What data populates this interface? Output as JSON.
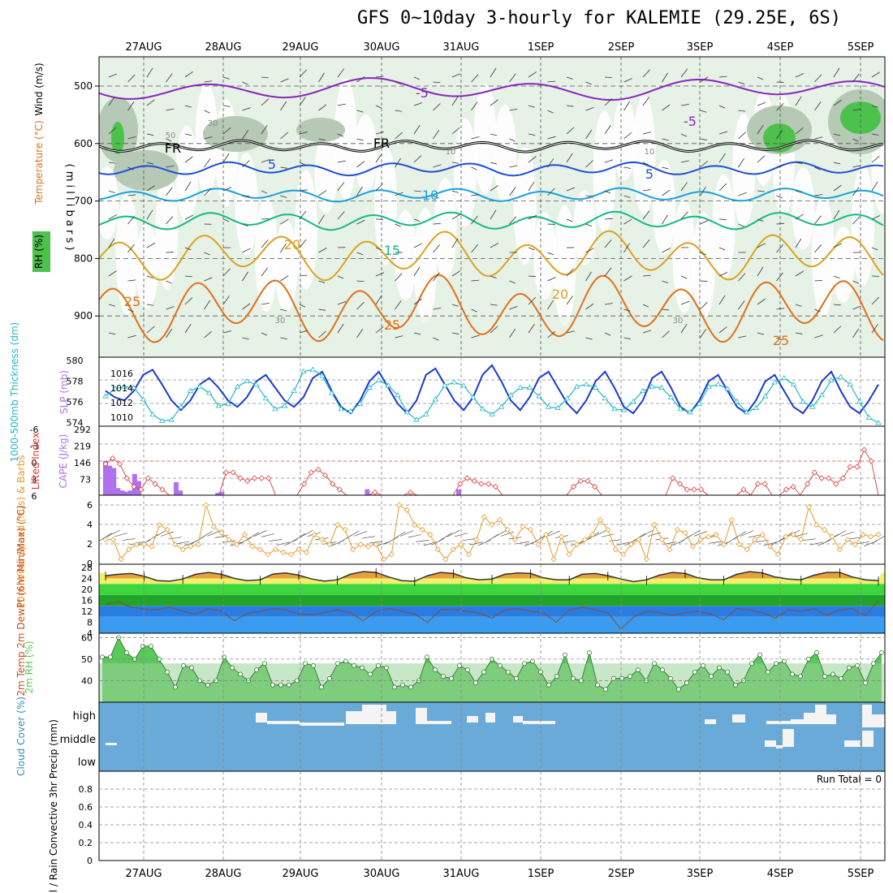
{
  "title": "GFS 0~10day 3-hourly for KALEMIE (29.25E, 6S)",
  "date_labels": [
    "27AUG",
    "28AUG",
    "29AUG",
    "30AUG",
    "31AUG",
    "1SEP",
    "2SEP",
    "3SEP",
    "4SEP",
    "5SEP"
  ],
  "colors": {
    "rh_fill_light": "#e6f2e6",
    "rh_fill_mid": "#b5c9b5",
    "rh_fill_dark": "#6fae6f",
    "rh_fill_green": "#4cc14c",
    "temp_minus5": "#8a24c0",
    "temp_freeze": "#000000",
    "temp_5": "#1f4fd8",
    "temp_10": "#1aa0e0",
    "temp_15": "#14b98a",
    "temp_20": "#e0a020",
    "temp_25": "#e0701a",
    "slp": "#1a3ad0",
    "thickness": "#22b8c8",
    "lifted_index": "#e03a3a",
    "cape": "#b070f0",
    "wind10": "#e89a2a",
    "temp_band_top": "#e8a03a",
    "rh2m": "#5ac85a",
    "cloud": "#6aaad8"
  },
  "panels": {
    "upper": {
      "ylabel": [
        "Wind (m/s)",
        "Temperature (°C)",
        "RH (%)"
      ],
      "yaxis_label": "( m i l l i b a r s )",
      "pressure_ticks": [
        "500",
        "600",
        "700",
        "800",
        "900"
      ],
      "contour_labels": [
        "-5",
        "-5",
        "FR",
        "FR",
        "5",
        "5",
        "10",
        "15",
        "20",
        "20",
        "25",
        "25",
        "25"
      ],
      "rh_labels": [
        "50",
        "30",
        "30",
        "30",
        "10",
        "10"
      ],
      "freezing_pressure": 600
    },
    "slp": {
      "ylabel_left": "1000-500mb Thickness (dm)",
      "ylabel_right": "SLP (mb)",
      "left_ticks": [
        "580",
        "578",
        "576",
        "574"
      ],
      "right_ticks": [
        "1016",
        "1014",
        "1012",
        "1010"
      ]
    },
    "cape": {
      "ylabel_left": "Lifted Index",
      "ylabel_right": "CAPE (J/kg)",
      "left_ticks": [
        "-6",
        "-3",
        "0",
        "3",
        "6"
      ],
      "right_ticks": [
        "292",
        "219",
        "146",
        "73"
      ]
    },
    "wind": {
      "ylabel": "10m Wind Speed (m/s) & Barbs",
      "ticks": [
        "6",
        "4",
        "2",
        "0"
      ]
    },
    "temp": {
      "ylabel": "2m Temp 2m DewPt (6hr Min/Max) (°C)",
      "ticks": [
        "28",
        "24",
        "20",
        "16",
        "12",
        "8",
        "4"
      ]
    },
    "rh": {
      "ylabel": "2m RH (%)",
      "ticks": [
        "60",
        "50",
        "40"
      ]
    },
    "cloud": {
      "ylabel": "Cloud Cover (%)",
      "levels": [
        "high",
        "middle",
        "low"
      ]
    },
    "precip": {
      "ylabel": "Total / Rain Convective 3hr Precip (mm)",
      "ticks": [
        "0.8",
        "0.6",
        "0.4",
        "0.2",
        "0"
      ],
      "run_total": "Run Total = 0"
    }
  },
  "chart_data": [
    {
      "type": "line",
      "title": "1000-500mb Thickness (dm) / SLP (mb)",
      "x_unit": "3-hourly steps from 26AUG 15Z",
      "series": [
        {
          "name": "SLP (mb)",
          "values": [
            1013.5,
            1012.5,
            1012.0,
            1013.5,
            1016.0,
            1016.8,
            1014.5,
            1012.0,
            1010.5,
            1012.0,
            1014.5,
            1015.5,
            1014.0,
            1012.0,
            1011.0,
            1012.5,
            1015.0,
            1016.0,
            1014.0,
            1012.0,
            1011.0,
            1012.5,
            1015.5,
            1016.5,
            1013.5,
            1011.0,
            1010.0,
            1012.0,
            1015.0,
            1016.5,
            1014.0,
            1011.5,
            1010.0,
            1012.0,
            1016.0,
            1017.0,
            1014.5,
            1012.0,
            1010.5,
            1012.5,
            1016.0,
            1017.5,
            1015.0,
            1012.0,
            1010.5,
            1012.5,
            1015.5,
            1016.5,
            1014.0,
            1011.5,
            1010.0,
            1012.0,
            1015.0,
            1016.5,
            1014.0,
            1011.0,
            1010.0,
            1012.0,
            1015.5,
            1016.5,
            1014.0,
            1011.0,
            1010.0,
            1012.0,
            1015.0,
            1016.0,
            1013.5,
            1011.0,
            1010.0,
            1012.0,
            1015.0,
            1016.0,
            1013.5,
            1011.0,
            1010.0,
            1012.0,
            1015.0,
            1016.5,
            1013.5,
            1011.0,
            1010.0,
            1012.0,
            1014.5
          ]
        },
        {
          "name": "1000-500mb Thickness (dm)",
          "values": [
            576.5,
            577.2,
            577.4,
            577.3,
            576.2,
            574.8,
            574.2,
            574.3,
            575.5,
            577.0,
            577.4,
            576.8,
            575.6,
            575.8,
            577.4,
            577.9,
            577.6,
            576.3,
            575.3,
            575.6,
            577.0,
            578.8,
            579.0,
            578.4,
            576.8,
            575.3,
            575.1,
            575.8,
            577.3,
            578.0,
            577.5,
            576.6,
            575.0,
            574.3,
            574.8,
            576.2,
            577.5,
            577.8,
            577.5,
            576.4,
            575.3,
            574.8,
            575.5,
            576.6,
            577.3,
            577.3,
            576.5,
            575.5,
            575.4,
            576.3,
            577.4,
            577.6,
            577.3,
            576.3,
            575.3,
            575.2,
            576.0,
            577.0,
            577.4,
            577.3,
            576.4,
            575.3,
            575.0,
            575.8,
            577.4,
            577.6,
            577.2,
            576.0,
            575.0,
            575.4,
            576.5,
            577.8,
            578.2,
            577.6,
            576.0,
            575.5,
            576.6,
            578.0,
            578.3,
            577.6,
            576.0,
            574.5,
            574.0
          ]
        }
      ],
      "ylim_left": [
        574,
        580
      ],
      "ylim_right": [
        1009,
        1018
      ]
    },
    {
      "type": "bar",
      "title": "Lifted Index / CAPE (J/kg)",
      "series": [
        {
          "name": "CAPE (J/kg)",
          "values": [
            145,
            125,
            115,
            30,
            20,
            15,
            20,
            90,
            60,
            0,
            0,
            0,
            0,
            0,
            0,
            0,
            0,
            55,
            20,
            0,
            0,
            0,
            0,
            0,
            0,
            0,
            0,
            10,
            15,
            0,
            0,
            0,
            0,
            0,
            0,
            0,
            0,
            0,
            0,
            0,
            0,
            0,
            0,
            0,
            0,
            0,
            0,
            0,
            0,
            0,
            0,
            0,
            0,
            0,
            0,
            0,
            0,
            0,
            0,
            0,
            0,
            0,
            0,
            25,
            0,
            0,
            0,
            0,
            0,
            0,
            0,
            0,
            0,
            0,
            0,
            0,
            0,
            0,
            0,
            0,
            0,
            0,
            0,
            0,
            0,
            25,
            0,
            0,
            0,
            0,
            0,
            0,
            0,
            0,
            0,
            0,
            0,
            0,
            0,
            0,
            0,
            0,
            0,
            0,
            0,
            0,
            0,
            0,
            0,
            0,
            0,
            0,
            0,
            0,
            0,
            0,
            0,
            0,
            0,
            0,
            0,
            0,
            0,
            0,
            0,
            0,
            0,
            0,
            0,
            0,
            0,
            0,
            0,
            0,
            0,
            0,
            0,
            0,
            0,
            0,
            0,
            0,
            0,
            0,
            0,
            0,
            0,
            0,
            0,
            0,
            0,
            0,
            0,
            0,
            0,
            0,
            0,
            0,
            0,
            0,
            0,
            0,
            0,
            0,
            0,
            0,
            0,
            0,
            0,
            0,
            0,
            0,
            0,
            0,
            0,
            0,
            0,
            0,
            0,
            0,
            0,
            0,
            0,
            0,
            0,
            0,
            0
          ]
        },
        {
          "name": "Lifted Index",
          "values": [
            0.5,
            -0.5,
            0.5,
            3,
            4.5,
            5,
            3,
            4,
            5,
            6,
            6,
            6,
            6,
            6,
            6,
            6,
            6,
            2,
            2,
            3,
            3.5,
            3,
            3,
            3,
            6,
            6,
            6,
            6,
            4,
            2,
            1.5,
            2.5,
            4,
            5,
            6,
            6,
            6,
            6,
            5.5,
            6,
            6,
            6,
            6,
            5.5,
            6,
            6,
            6,
            6,
            6,
            6,
            4,
            3,
            3.5,
            4,
            4,
            4.5,
            6,
            6,
            6,
            6,
            6,
            6,
            6,
            6,
            6,
            6,
            4.5,
            3.5,
            3.5,
            4.5,
            6,
            6,
            6,
            6,
            6,
            6,
            6,
            6,
            6,
            6,
            3,
            4,
            5,
            5,
            5,
            6,
            6,
            6,
            6,
            6,
            5,
            6,
            4,
            4,
            6,
            6,
            5,
            4.5,
            6,
            4,
            2,
            3,
            3,
            4,
            3,
            1,
            1,
            -2,
            0,
            6
          ]
        }
      ],
      "ylim_left": [
        -6,
        6
      ],
      "ylim_right": [
        0,
        292
      ]
    },
    {
      "type": "line",
      "title": "10m Wind Speed (m/s)",
      "series": [
        {
          "name": "10m Wind Speed",
          "values": [
            2.5,
            2.5,
            0.5,
            1.5,
            2.0,
            2.0,
            1.8,
            4.0,
            3.5,
            2.0,
            1.5,
            1.8,
            2.0,
            6.0,
            3.8,
            3.2,
            2.5,
            2.0,
            3.0,
            1.8,
            1.5,
            1.0,
            1.5,
            1.2,
            1.0,
            1.5,
            1.2,
            3.0,
            2.5,
            2.0,
            4.0,
            3.5,
            1.5,
            2.0,
            1.8,
            2.0,
            0.5,
            1.0,
            6.0,
            5.5,
            4.0,
            3.5,
            3.0,
            1.5,
            0.5,
            1.5,
            2.0,
            1.0,
            2.5,
            4.8,
            4.0,
            4.5,
            3.5,
            2.5,
            3.8,
            3.5,
            2.0,
            3.0,
            0.5,
            2.8,
            1.0,
            2.0,
            2.5,
            3.0,
            4.5,
            3.5,
            1.5,
            1.0,
            2.0,
            2.5,
            0.5,
            4.0,
            2.5,
            1.5,
            3.5,
            3.2,
            1.8,
            2.5,
            2.8,
            3.0,
            2.0,
            4.5,
            2.0,
            1.5,
            2.5,
            3.0,
            1.8,
            1.0,
            2.8,
            3.0,
            2.5,
            5.8,
            4.0,
            3.5,
            2.8,
            1.5,
            2.5,
            2.0,
            3.0,
            2.8,
            3.0
          ]
        }
      ],
      "ylim": [
        0,
        7
      ]
    },
    {
      "type": "line",
      "title": "2m Temp / 2m DewPt (°C)",
      "series": [
        {
          "name": "2m Temp",
          "values": [
            25,
            25.5,
            25.8,
            24.8,
            23.2,
            23.0,
            23.8,
            25.5,
            26.2,
            25.5,
            24.0,
            23.2,
            23.5,
            25.6,
            26.0,
            25.2,
            23.8,
            23.0,
            23.5,
            25.5,
            26.5,
            26.2,
            24.5,
            23.2,
            23.0,
            25.0,
            26.2,
            25.8,
            24.2,
            23.5,
            23.8,
            25.5,
            26.0,
            25.8,
            24.2,
            23.5,
            23.5,
            25.5,
            25.8,
            25.0,
            23.8,
            22.8,
            23.5,
            25.2,
            26.2,
            25.8,
            24.2,
            23.5,
            23.5,
            25.5,
            26.5,
            26.0,
            24.5,
            23.8,
            23.5,
            25.2,
            26.2,
            26.2,
            24.5,
            23.5,
            23.2
          ]
        },
        {
          "name": "2m DewPt",
          "values": [
            14.5,
            15.5,
            13.5,
            12.8,
            12.5,
            13.5,
            12.0,
            11.0,
            13.0,
            12.0,
            8.5,
            11.2,
            12.0,
            13.0,
            12.5,
            11.0,
            10.8,
            11.5,
            12.5,
            11.5,
            8.5,
            12.0,
            13.0,
            12.0,
            11.0,
            8.0,
            12.5,
            12.8,
            12.0,
            11.5,
            9.5,
            12.5,
            13.0,
            12.0,
            11.5,
            8.0,
            12.5,
            13.5,
            12.5,
            11.5,
            5.5,
            10.0,
            12.0,
            11.5,
            10.5,
            11.5,
            12.0,
            11.0,
            9.0,
            13.0,
            12.5,
            11.5,
            9.5,
            12.5,
            12.0,
            13.0,
            10.5,
            12.5,
            13.0,
            10.5,
            16.0
          ]
        }
      ],
      "ylim": [
        4,
        28
      ]
    },
    {
      "type": "area",
      "title": "2m RH (%)",
      "series": [
        {
          "name": "2m RH",
          "values": [
            51,
            51,
            60,
            53,
            50,
            56,
            56,
            50,
            44,
            37,
            47,
            46,
            40,
            38,
            40,
            51,
            46,
            43,
            40,
            45,
            48,
            38,
            38,
            38,
            40,
            48,
            47,
            37,
            41,
            48,
            49,
            47,
            46,
            43,
            47,
            46,
            37,
            38,
            37,
            40,
            51,
            45,
            42,
            41,
            47,
            45,
            39,
            44,
            50,
            47,
            44,
            41,
            48,
            49,
            44,
            38,
            42,
            52,
            41,
            40,
            53,
            38,
            36,
            41,
            41,
            42,
            45,
            40,
            48,
            45,
            41,
            36,
            39,
            44,
            47,
            42,
            46,
            44,
            38,
            40,
            48,
            52,
            44,
            48,
            49,
            43,
            42,
            50,
            53,
            42,
            43,
            41,
            46,
            47,
            39,
            48,
            53
          ]
        }
      ],
      "ylim": [
        30,
        62
      ]
    },
    {
      "type": "bar",
      "title": "3hr Precip (mm)",
      "series": [
        {
          "name": "3hr Precip",
          "values": [
            0,
            0,
            0,
            0,
            0,
            0,
            0,
            0,
            0,
            0
          ]
        }
      ],
      "ylim": [
        0,
        1
      ]
    }
  ]
}
